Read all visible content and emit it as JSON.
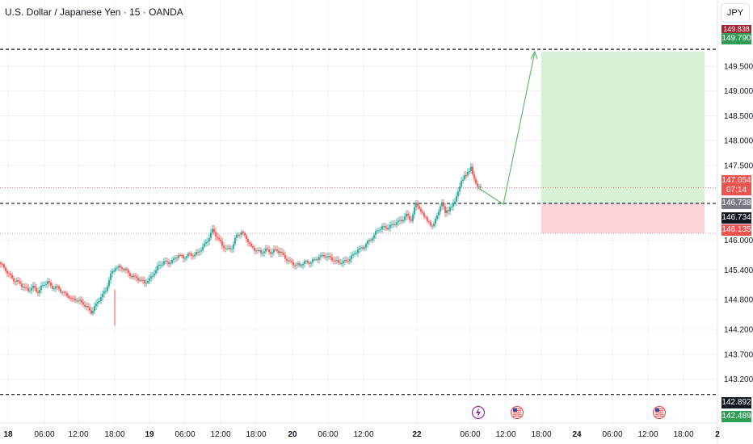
{
  "header": {
    "title": "U.S. Dollar / Japanese Yen · 15 · OANDA",
    "currency_button": "JPY"
  },
  "colors": {
    "up": "#26a69a",
    "down": "#ef5350",
    "target_zone": "#d7f0d6",
    "stop_zone": "#fbd4d8",
    "grid": "#f0f3fa",
    "arrow": "#66bb6a"
  },
  "price_labels": {
    "level_top": "149.838",
    "target": "149.790",
    "last_price": "147.054",
    "countdown": "07:14",
    "entry": "146.738",
    "current": "146.734",
    "stop": "146.135",
    "level_bottom": "142.892",
    "low_level": "142.489"
  },
  "events": [
    {
      "icon": "lightning-event-icon",
      "time": "22 06:00"
    },
    {
      "icon": "us-flag-event-icon",
      "time": "22 12:00"
    },
    {
      "icon": "us-flag-event-icon",
      "time": "24 12:00"
    }
  ],
  "chart_data": {
    "type": "candlestick",
    "title": "U.S. Dollar / Japanese Yen · 15 · OANDA",
    "y_ticks": [
      "149.500",
      "149.000",
      "148.500",
      "148.000",
      "147.500",
      "146.000",
      "145.400",
      "144.800",
      "144.200",
      "143.700",
      "143.200"
    ],
    "y_tick_values": [
      149.5,
      149.0,
      148.5,
      148.0,
      147.5,
      146.0,
      145.4,
      144.8,
      144.2,
      143.7,
      143.2
    ],
    "x_ticks": [
      "18",
      "06:00",
      "12:00",
      "18:00",
      "19",
      "06:00",
      "12:00",
      "18:00",
      "20",
      "06:00",
      "12:00",
      "22",
      "06:00",
      "12:00",
      "18:00",
      "24",
      "06:00",
      "12:00",
      "18:00",
      "2"
    ],
    "x_tick_bold": [
      true,
      false,
      false,
      false,
      true,
      false,
      false,
      false,
      true,
      false,
      false,
      true,
      false,
      false,
      false,
      true,
      false,
      false,
      false,
      true
    ],
    "ylim": [
      142.35,
      150.05
    ],
    "horizontal_levels": [
      149.838,
      146.738,
      142.892
    ],
    "position": {
      "type": "long",
      "entry": 146.738,
      "target": 149.79,
      "stop": 146.135,
      "start_time": "22 18:00",
      "end_time": "24 18:00"
    },
    "projection_arrow": [
      [
        "22 09:00",
        147.0
      ],
      [
        "22 15:00",
        146.7
      ],
      [
        "22 18:00",
        149.79
      ]
    ],
    "close_path": [
      [
        0,
        145.55
      ],
      [
        6,
        145.45
      ],
      [
        12,
        145.3
      ],
      [
        18,
        145.2
      ],
      [
        24,
        145.15
      ],
      [
        30,
        145.05
      ],
      [
        36,
        145.0
      ],
      [
        42,
        145.05
      ],
      [
        48,
        144.95
      ],
      [
        54,
        145.1
      ],
      [
        60,
        145.15
      ],
      [
        66,
        145.05
      ],
      [
        72,
        145.05
      ],
      [
        78,
        144.95
      ],
      [
        84,
        144.9
      ],
      [
        90,
        144.8
      ],
      [
        96,
        144.8
      ],
      [
        102,
        144.75
      ],
      [
        108,
        144.65
      ],
      [
        114,
        144.55
      ],
      [
        120,
        144.7
      ],
      [
        126,
        144.85
      ],
      [
        132,
        145.0
      ],
      [
        138,
        145.3
      ],
      [
        144,
        145.45
      ],
      [
        150,
        145.45
      ],
      [
        156,
        145.4
      ],
      [
        162,
        145.3
      ],
      [
        168,
        145.25
      ],
      [
        174,
        145.2
      ],
      [
        180,
        145.15
      ],
      [
        186,
        145.2
      ],
      [
        192,
        145.35
      ],
      [
        198,
        145.5
      ],
      [
        204,
        145.55
      ],
      [
        210,
        145.55
      ],
      [
        216,
        145.6
      ],
      [
        222,
        145.7
      ],
      [
        228,
        145.65
      ],
      [
        234,
        145.7
      ],
      [
        240,
        145.7
      ],
      [
        246,
        145.75
      ],
      [
        252,
        145.85
      ],
      [
        258,
        146.0
      ],
      [
        264,
        146.2
      ],
      [
        270,
        146.05
      ],
      [
        276,
        145.9
      ],
      [
        282,
        145.8
      ],
      [
        288,
        145.85
      ],
      [
        294,
        146.1
      ],
      [
        300,
        146.15
      ],
      [
        306,
        146.05
      ],
      [
        312,
        145.85
      ],
      [
        318,
        145.8
      ],
      [
        324,
        145.75
      ],
      [
        330,
        145.8
      ],
      [
        336,
        145.75
      ],
      [
        342,
        145.8
      ],
      [
        348,
        145.75
      ],
      [
        354,
        145.65
      ],
      [
        360,
        145.55
      ],
      [
        366,
        145.5
      ],
      [
        372,
        145.5
      ],
      [
        378,
        145.55
      ],
      [
        384,
        145.55
      ],
      [
        390,
        145.6
      ],
      [
        396,
        145.65
      ],
      [
        402,
        145.7
      ],
      [
        408,
        145.65
      ],
      [
        414,
        145.6
      ],
      [
        420,
        145.55
      ],
      [
        426,
        145.55
      ],
      [
        432,
        145.6
      ],
      [
        438,
        145.7
      ],
      [
        444,
        145.8
      ],
      [
        450,
        145.85
      ],
      [
        456,
        145.95
      ],
      [
        462,
        146.05
      ],
      [
        468,
        146.2
      ],
      [
        474,
        146.25
      ],
      [
        480,
        146.25
      ],
      [
        486,
        146.3
      ],
      [
        492,
        146.35
      ],
      [
        498,
        146.4
      ],
      [
        504,
        146.5
      ],
      [
        510,
        146.4
      ],
      [
        516,
        146.75
      ],
      [
        520,
        146.65
      ],
      [
        524,
        146.55
      ],
      [
        528,
        146.45
      ],
      [
        532,
        146.35
      ],
      [
        536,
        146.25
      ],
      [
        540,
        146.4
      ],
      [
        544,
        146.55
      ],
      [
        548,
        146.75
      ],
      [
        552,
        146.55
      ],
      [
        556,
        146.6
      ],
      [
        560,
        146.7
      ],
      [
        564,
        146.8
      ],
      [
        568,
        147.0
      ],
      [
        572,
        147.2
      ],
      [
        576,
        147.3
      ],
      [
        580,
        147.35
      ],
      [
        584,
        147.45
      ],
      [
        588,
        147.2
      ],
      [
        592,
        147.05
      ]
    ]
  }
}
